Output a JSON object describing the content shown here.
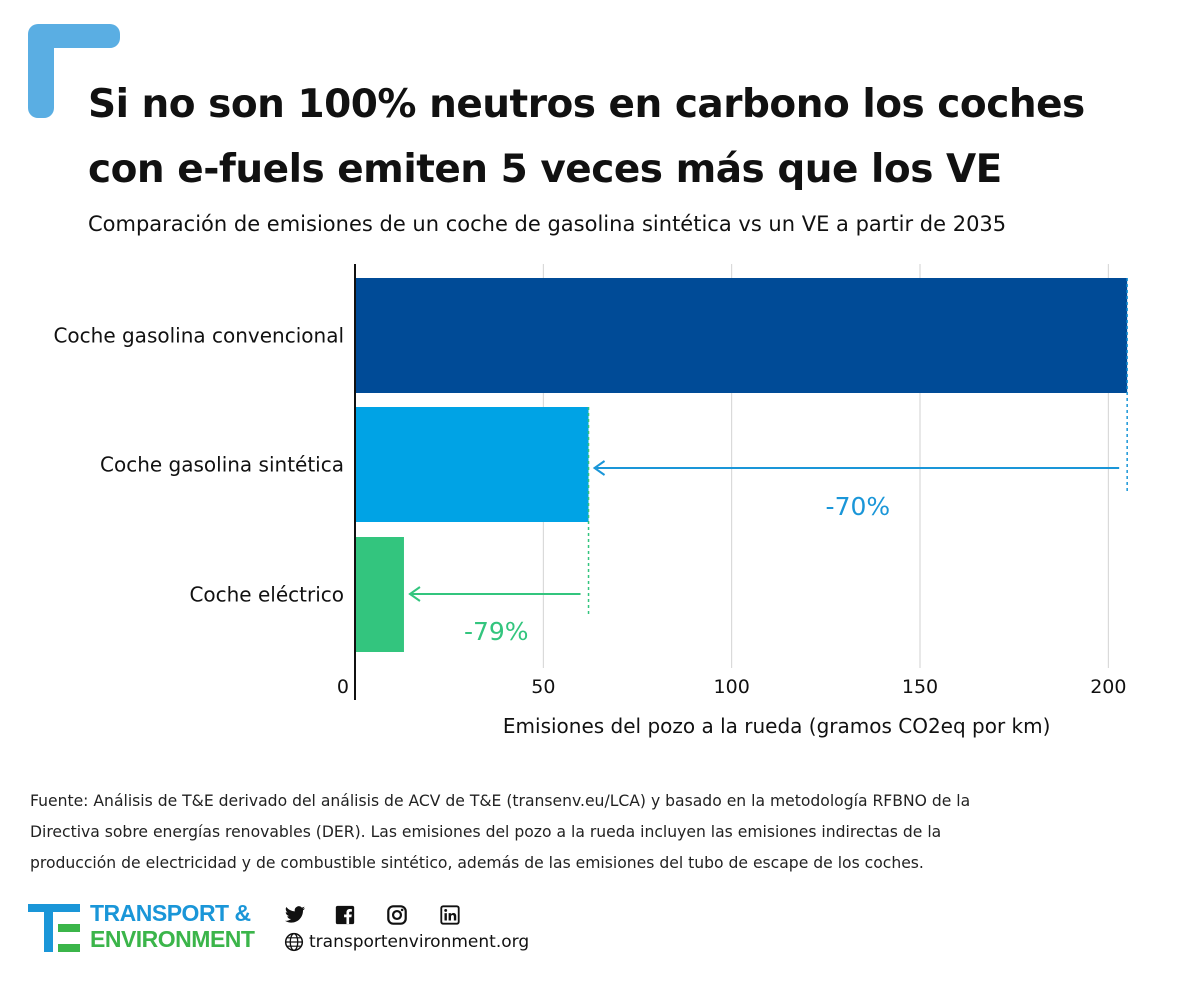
{
  "title_lines": [
    "Si no son 100% neutros en carbono los coches",
    "con e-fuels emiten 5 veces más que los VE"
  ],
  "subtitle": "Comparación de emisiones de un coche de gasolina sintética vs un VE a partir de 2035",
  "chart_data": {
    "type": "bar",
    "orientation": "horizontal",
    "categories": [
      "Coche gasolina convencional",
      "Coche gasolina sintética",
      "Coche eléctrico"
    ],
    "values": [
      205,
      62,
      13
    ],
    "colors": [
      "#004b97",
      "#00a3e5",
      "#33c57e"
    ],
    "xlabel": "Emisiones del pozo a la rueda (gramos CO2eq por km)",
    "xlim": [
      0,
      210
    ],
    "xticks": [
      0,
      50,
      100,
      150,
      200
    ],
    "grid": true,
    "annotations": [
      {
        "text": "-70%",
        "from": 205,
        "to": 62,
        "bar_index": 1,
        "color": "#1a96d8"
      },
      {
        "text": "-79%",
        "from": 62,
        "to": 13,
        "bar_index": 2,
        "color": "#33c57e"
      }
    ]
  },
  "source_lines": [
    "Fuente: Análisis de T&E derivado del análisis de ACV de T&E (transenv.eu/LCA) y basado en la metodología RFBNO de la",
    "Directiva sobre energías renovables (DER). Las emisiones del pozo a la rueda incluyen las emisiones indirectas de la",
    "producción de electricidad y de combustible sintético, además de las emisiones del tubo de escape de los coches."
  ],
  "footer": {
    "logo_line1": "TRANSPORT &",
    "logo_line2": "ENVIRONMENT",
    "website": "transportenvironment.org",
    "social_icons": [
      "twitter-icon",
      "facebook-icon",
      "instagram-icon",
      "linkedin-icon"
    ],
    "brand_colors": {
      "blue": "#1a96d8",
      "green": "#3bb54a",
      "corner": "#5aaee3"
    }
  }
}
